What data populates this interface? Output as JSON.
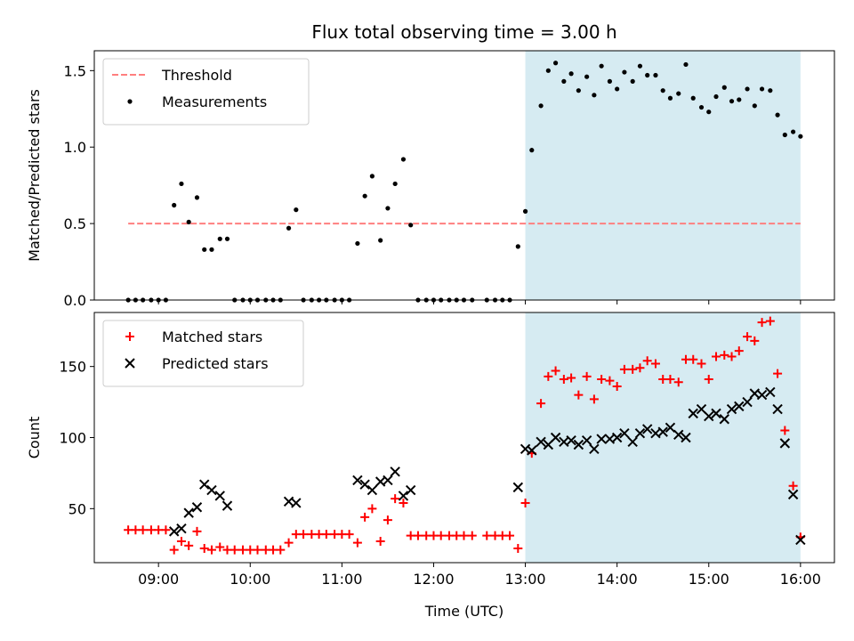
{
  "chart_data": [
    {
      "type": "scatter",
      "title": "Flux total observing time = 3.00 h",
      "xlabel": "",
      "ylabel": "Matched/Predicted stars",
      "xlim": [
        8.3,
        16.37
      ],
      "ylim": [
        0,
        1.63
      ],
      "yticks": [
        0,
        0.5,
        1.0,
        1.5
      ],
      "ytick_labels": [
        "0.0",
        "0.5",
        "1.0",
        "1.5"
      ],
      "xticks": [
        9,
        10,
        11,
        12,
        13,
        14,
        15,
        16
      ],
      "xtick_labels": [
        "",
        "",
        "",
        "",
        "",
        "",
        "",
        ""
      ],
      "highlight_span": {
        "x_start": 13.0,
        "x_end": 16.0,
        "color": "#add8e6"
      },
      "legend_placement": "upper left",
      "threshold": {
        "name": "Threshold",
        "x_start": 8.67,
        "x_end": 16.0,
        "y": 0.5,
        "color": "#ff7f7f"
      },
      "series": [
        {
          "name": "Measurements",
          "marker": "dot",
          "color": "#000000",
          "x": [
            8.67,
            8.75,
            8.83,
            8.92,
            9.0,
            9.08,
            9.17,
            9.25,
            9.33,
            9.42,
            9.5,
            9.58,
            9.67,
            9.75,
            9.83,
            9.92,
            10.0,
            10.08,
            10.17,
            10.25,
            10.33,
            10.42,
            10.5,
            10.58,
            10.67,
            10.75,
            10.83,
            10.92,
            11.0,
            11.08,
            11.17,
            11.25,
            11.33,
            11.42,
            11.5,
            11.58,
            11.67,
            11.75,
            11.83,
            11.92,
            12.0,
            12.08,
            12.17,
            12.25,
            12.33,
            12.42,
            12.58,
            12.67,
            12.75,
            12.83,
            12.92,
            13.0,
            13.07,
            13.17,
            13.25,
            13.33,
            13.42,
            13.5,
            13.58,
            13.67,
            13.75,
            13.83,
            13.92,
            14.0,
            14.08,
            14.17,
            14.25,
            14.33,
            14.42,
            14.5,
            14.58,
            14.67,
            14.75,
            14.83,
            14.92,
            15.0,
            15.08,
            15.17,
            15.25,
            15.33,
            15.42,
            15.5,
            15.58,
            15.67,
            15.75,
            15.83,
            15.92,
            16.0
          ],
          "y": [
            0,
            0,
            0,
            0,
            0,
            0,
            0.62,
            0.76,
            0.51,
            0.67,
            0.33,
            0.33,
            0.4,
            0.4,
            0,
            0,
            0,
            0,
            0,
            0,
            0,
            0.47,
            0.59,
            0,
            0,
            0,
            0,
            0,
            0,
            0,
            0.37,
            0.68,
            0.81,
            0.39,
            0.6,
            0.76,
            0.92,
            0.49,
            0,
            0,
            0,
            0,
            0,
            0,
            0,
            0,
            0,
            0,
            0,
            0,
            0.35,
            0.58,
            0.98,
            1.27,
            1.5,
            1.55,
            1.43,
            1.48,
            1.37,
            1.46,
            1.34,
            1.53,
            1.43,
            1.38,
            1.49,
            1.43,
            1.53,
            1.47,
            1.47,
            1.37,
            1.32,
            1.35,
            1.54,
            1.32,
            1.26,
            1.23,
            1.33,
            1.39,
            1.3,
            1.31,
            1.38,
            1.27,
            1.38,
            1.37,
            1.21,
            1.08,
            1.1,
            1.07
          ]
        }
      ]
    },
    {
      "type": "scatter",
      "title": "",
      "xlabel": "Time (UTC)",
      "ylabel": "Count",
      "xlim": [
        8.3,
        16.37
      ],
      "ylim": [
        12,
        188
      ],
      "yticks": [
        50,
        100,
        150
      ],
      "ytick_labels": [
        "50",
        "100",
        "150"
      ],
      "xticks": [
        9,
        10,
        11,
        12,
        13,
        14,
        15,
        16
      ],
      "xtick_labels": [
        "09:00",
        "10:00",
        "11:00",
        "12:00",
        "13:00",
        "14:00",
        "15:00",
        "16:00"
      ],
      "highlight_span": {
        "x_start": 13.0,
        "x_end": 16.0,
        "color": "#add8e6"
      },
      "legend_placement": "upper left",
      "series": [
        {
          "name": "Matched stars",
          "marker": "plus",
          "color": "#ff0000",
          "x": [
            8.67,
            8.75,
            8.83,
            8.92,
            9.0,
            9.08,
            9.17,
            9.25,
            9.33,
            9.42,
            9.5,
            9.58,
            9.67,
            9.75,
            9.83,
            9.92,
            10.0,
            10.08,
            10.17,
            10.25,
            10.33,
            10.42,
            10.5,
            10.58,
            10.67,
            10.75,
            10.83,
            10.92,
            11.0,
            11.08,
            11.17,
            11.25,
            11.33,
            11.42,
            11.5,
            11.58,
            11.67,
            11.75,
            11.83,
            11.92,
            12.0,
            12.08,
            12.17,
            12.25,
            12.33,
            12.42,
            12.58,
            12.67,
            12.75,
            12.83,
            12.92,
            13.0,
            13.07,
            13.17,
            13.25,
            13.33,
            13.42,
            13.5,
            13.58,
            13.67,
            13.75,
            13.83,
            13.92,
            14.0,
            14.08,
            14.17,
            14.25,
            14.33,
            14.42,
            14.5,
            14.58,
            14.67,
            14.75,
            14.83,
            14.92,
            15.0,
            15.08,
            15.17,
            15.25,
            15.33,
            15.42,
            15.5,
            15.58,
            15.67,
            15.75,
            15.83,
            15.92,
            16.0
          ],
          "y": [
            35,
            35,
            35,
            35,
            35,
            35,
            21,
            27,
            24,
            34,
            22,
            21,
            23,
            21,
            21,
            21,
            21,
            21,
            21,
            21,
            21,
            26,
            32,
            32,
            32,
            32,
            32,
            32,
            32,
            32,
            26,
            44,
            50,
            27,
            42,
            57,
            54,
            31,
            31,
            31,
            31,
            31,
            31,
            31,
            31,
            31,
            31,
            31,
            31,
            31,
            22,
            54,
            89,
            124,
            143,
            147,
            141,
            142,
            130,
            143,
            127,
            141,
            140,
            136,
            148,
            148,
            149,
            154,
            152,
            141,
            141,
            139,
            155,
            155,
            152,
            141,
            157,
            158,
            157,
            161,
            171,
            168,
            181,
            182,
            145,
            105,
            66,
            30
          ]
        },
        {
          "name": "Predicted stars",
          "marker": "x",
          "color": "#000000",
          "x": [
            9.17,
            9.25,
            9.33,
            9.42,
            9.5,
            9.58,
            9.67,
            9.75,
            10.42,
            10.5,
            11.17,
            11.25,
            11.33,
            11.42,
            11.5,
            11.58,
            11.67,
            11.75,
            12.92,
            13.0,
            13.07,
            13.17,
            13.25,
            13.33,
            13.42,
            13.5,
            13.58,
            13.67,
            13.75,
            13.83,
            13.92,
            14.0,
            14.08,
            14.17,
            14.25,
            14.33,
            14.42,
            14.5,
            14.58,
            14.67,
            14.75,
            14.83,
            14.92,
            15.0,
            15.08,
            15.17,
            15.25,
            15.33,
            15.42,
            15.5,
            15.58,
            15.67,
            15.75,
            15.83,
            15.92,
            16.0
          ],
          "y": [
            34,
            36,
            47,
            51,
            67,
            63,
            59,
            52,
            55,
            54,
            70,
            67,
            63,
            69,
            70,
            76,
            59,
            63,
            65,
            92,
            91,
            97,
            95,
            100,
            97,
            98,
            95,
            98,
            92,
            99,
            99,
            100,
            103,
            97,
            103,
            106,
            103,
            104,
            107,
            102,
            100,
            117,
            120,
            115,
            117,
            113,
            120,
            122,
            125,
            131,
            130,
            132,
            120,
            96,
            60,
            28
          ]
        }
      ]
    }
  ]
}
